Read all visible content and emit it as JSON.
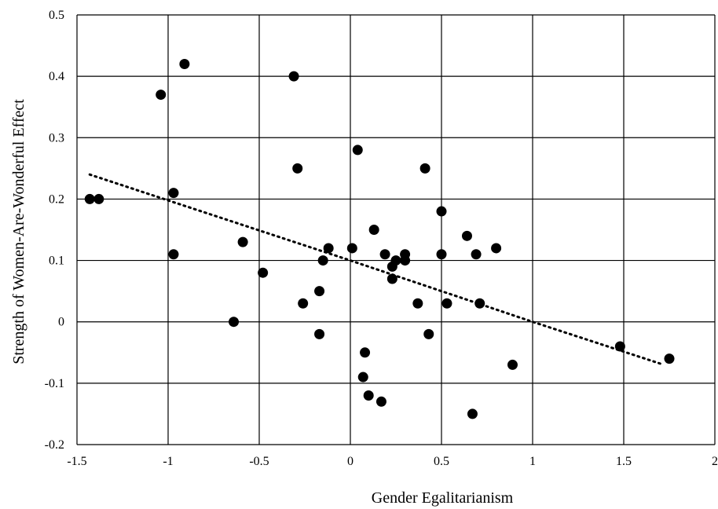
{
  "chart_data": {
    "type": "scatter",
    "xlabel": "Gender Egalitarianism",
    "ylabel": "Strength of  Women-Are-Wonderful Effect",
    "xlim": [
      -1.5,
      2
    ],
    "ylim": [
      -0.2,
      0.5
    ],
    "x_ticks": [
      -1.5,
      -1,
      -0.5,
      0,
      0.5,
      1,
      1.5,
      2
    ],
    "y_ticks": [
      -0.2,
      -0.1,
      0,
      0.1,
      0.2,
      0.3,
      0.4,
      0.5
    ],
    "x_tick_labels": [
      "-1.5",
      "-1",
      "-0.5",
      "0",
      "0.5",
      "1",
      "1.5",
      "2"
    ],
    "y_tick_labels": [
      "-0.2",
      "-0.1",
      "0",
      "0.1",
      "0.2",
      "0.3",
      "0.4",
      "0.5"
    ],
    "grid": true,
    "points": [
      {
        "x": -1.43,
        "y": 0.2
      },
      {
        "x": -1.38,
        "y": 0.2
      },
      {
        "x": -1.04,
        "y": 0.37
      },
      {
        "x": -0.91,
        "y": 0.42
      },
      {
        "x": -0.97,
        "y": 0.21
      },
      {
        "x": -0.97,
        "y": 0.11
      },
      {
        "x": -0.64,
        "y": 0.0
      },
      {
        "x": -0.59,
        "y": 0.13
      },
      {
        "x": -0.48,
        "y": 0.08
      },
      {
        "x": -0.31,
        "y": 0.4
      },
      {
        "x": -0.29,
        "y": 0.25
      },
      {
        "x": -0.26,
        "y": 0.03
      },
      {
        "x": -0.17,
        "y": 0.05
      },
      {
        "x": -0.17,
        "y": -0.02
      },
      {
        "x": -0.15,
        "y": 0.1
      },
      {
        "x": -0.12,
        "y": 0.12
      },
      {
        "x": 0.01,
        "y": 0.12
      },
      {
        "x": 0.04,
        "y": 0.28
      },
      {
        "x": 0.07,
        "y": -0.09
      },
      {
        "x": 0.08,
        "y": -0.05
      },
      {
        "x": 0.1,
        "y": -0.12
      },
      {
        "x": 0.13,
        "y": 0.15
      },
      {
        "x": 0.17,
        "y": -0.13
      },
      {
        "x": 0.19,
        "y": 0.11
      },
      {
        "x": 0.23,
        "y": 0.09
      },
      {
        "x": 0.23,
        "y": 0.07
      },
      {
        "x": 0.25,
        "y": 0.1
      },
      {
        "x": 0.3,
        "y": 0.11
      },
      {
        "x": 0.3,
        "y": 0.1
      },
      {
        "x": 0.37,
        "y": 0.03
      },
      {
        "x": 0.41,
        "y": 0.25
      },
      {
        "x": 0.43,
        "y": -0.02
      },
      {
        "x": 0.5,
        "y": 0.18
      },
      {
        "x": 0.5,
        "y": 0.11
      },
      {
        "x": 0.53,
        "y": 0.03
      },
      {
        "x": 0.64,
        "y": 0.14
      },
      {
        "x": 0.67,
        "y": -0.15
      },
      {
        "x": 0.69,
        "y": 0.11
      },
      {
        "x": 0.71,
        "y": 0.03
      },
      {
        "x": 0.8,
        "y": 0.12
      },
      {
        "x": 0.89,
        "y": -0.07
      },
      {
        "x": 1.48,
        "y": -0.04
      },
      {
        "x": 1.75,
        "y": -0.06
      }
    ],
    "trendline": {
      "style": "dotted",
      "points": [
        {
          "x": -1.43,
          "y": 0.24
        },
        {
          "x": 0.0,
          "y": 0.1
        },
        {
          "x": 1.0,
          "y": 0.0
        },
        {
          "x": 1.72,
          "y": -0.07
        }
      ]
    },
    "colors": {
      "points": "#000000",
      "grid": "#000000",
      "trendline": "#000000"
    }
  }
}
